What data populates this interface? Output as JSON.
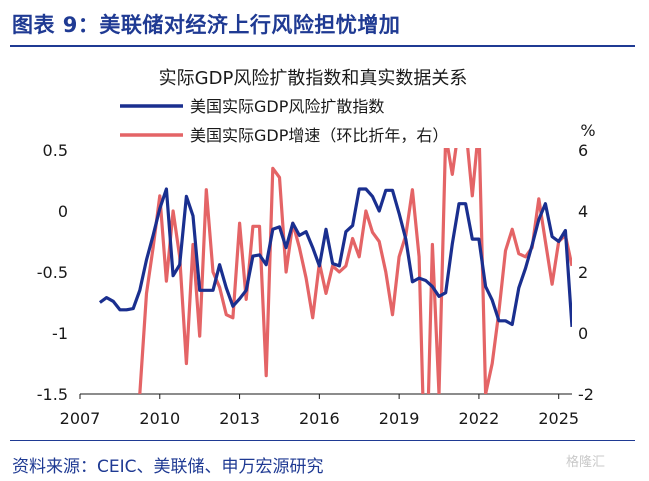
{
  "header": {
    "title": "图表 9：美联储对经济上行风险担忧增加"
  },
  "source": "资料来源：CEIC、美联储、申万宏源研究",
  "watermark": "格隆汇",
  "colors": {
    "brand": "#1f3a93",
    "series_risk": "#1a2f8f",
    "series_gdp": "#e46466"
  },
  "chart_data": {
    "type": "line",
    "title": "实际GDP风险扩散指数和真实数据关系",
    "left_axis": {
      "ticks": [
        "0.5",
        "0",
        "-0.5",
        "-1",
        "-1.5"
      ],
      "ylim": [
        -1.5,
        0.5
      ]
    },
    "right_axis": {
      "unit": "%",
      "ticks": [
        "6",
        "4",
        "2",
        "0",
        "-2"
      ],
      "ylim": [
        -2,
        6
      ]
    },
    "x_ticks": [
      "2007",
      "2010",
      "2013",
      "2016",
      "2019",
      "2022",
      "2025"
    ],
    "xlim": [
      2007,
      2025.5
    ],
    "legend": {
      "placement": "top-center"
    },
    "grid": false,
    "series": [
      {
        "name": "美国实际GDP风险扩散指数",
        "axis": "left",
        "points": [
          [
            2007.75,
            -0.75
          ],
          [
            2008.0,
            -0.71
          ],
          [
            2008.25,
            -0.74
          ],
          [
            2008.5,
            -0.81
          ],
          [
            2008.75,
            -0.81
          ],
          [
            2009.0,
            -0.8
          ],
          [
            2009.25,
            -0.65
          ],
          [
            2009.5,
            -0.4
          ],
          [
            2009.75,
            -0.2
          ],
          [
            2010.0,
            0.02
          ],
          [
            2010.25,
            0.18
          ],
          [
            2010.5,
            -0.53
          ],
          [
            2010.75,
            -0.44
          ],
          [
            2011.0,
            0.12
          ],
          [
            2011.25,
            -0.04
          ],
          [
            2011.5,
            -0.65
          ],
          [
            2011.75,
            -0.65
          ],
          [
            2012.0,
            -0.65
          ],
          [
            2012.25,
            -0.44
          ],
          [
            2012.5,
            -0.63
          ],
          [
            2012.75,
            -0.78
          ],
          [
            2013.0,
            -0.72
          ],
          [
            2013.25,
            -0.65
          ],
          [
            2013.5,
            -0.37
          ],
          [
            2013.75,
            -0.36
          ],
          [
            2014.0,
            -0.44
          ],
          [
            2014.25,
            -0.15
          ],
          [
            2014.5,
            -0.13
          ],
          [
            2014.75,
            -0.3
          ],
          [
            2015.0,
            -0.1
          ],
          [
            2015.25,
            -0.2
          ],
          [
            2015.5,
            -0.17
          ],
          [
            2015.75,
            -0.3
          ],
          [
            2016.0,
            -0.45
          ],
          [
            2016.25,
            -0.15
          ],
          [
            2016.5,
            -0.43
          ],
          [
            2016.75,
            -0.45
          ],
          [
            2017.0,
            -0.17
          ],
          [
            2017.25,
            -0.12
          ],
          [
            2017.5,
            0.18
          ],
          [
            2017.75,
            0.18
          ],
          [
            2018.0,
            0.12
          ],
          [
            2018.25,
            0.0
          ],
          [
            2018.5,
            0.17
          ],
          [
            2018.75,
            0.17
          ],
          [
            2019.0,
            -0.02
          ],
          [
            2019.25,
            -0.23
          ],
          [
            2019.5,
            -0.58
          ],
          [
            2019.75,
            -0.55
          ],
          [
            2020.0,
            -0.57
          ],
          [
            2020.25,
            -0.62
          ],
          [
            2020.5,
            -0.7
          ],
          [
            2020.75,
            -0.67
          ],
          [
            2021.0,
            -0.27
          ],
          [
            2021.25,
            0.06
          ],
          [
            2021.5,
            0.06
          ],
          [
            2021.75,
            -0.23
          ],
          [
            2022.0,
            -0.23
          ],
          [
            2022.25,
            -0.62
          ],
          [
            2022.5,
            -0.73
          ],
          [
            2022.75,
            -0.9
          ],
          [
            2023.0,
            -0.9
          ],
          [
            2023.25,
            -0.93
          ],
          [
            2023.5,
            -0.63
          ],
          [
            2023.75,
            -0.47
          ],
          [
            2024.0,
            -0.28
          ],
          [
            2024.25,
            -0.07
          ],
          [
            2024.5,
            0.06
          ],
          [
            2024.75,
            -0.21
          ],
          [
            2025.0,
            -0.25
          ],
          [
            2025.25,
            -0.16
          ],
          [
            2025.5,
            -0.95
          ]
        ]
      },
      {
        "name": "美国实际GDP增速（环比折年，右）",
        "axis": "right",
        "points": [
          [
            2009.25,
            -2.0
          ],
          [
            2009.5,
            1.3
          ],
          [
            2009.75,
            2.8
          ],
          [
            2010.0,
            4.5
          ],
          [
            2010.25,
            1.7
          ],
          [
            2010.5,
            4.0
          ],
          [
            2010.75,
            2.5
          ],
          [
            2011.0,
            -1.0
          ],
          [
            2011.25,
            2.9
          ],
          [
            2011.5,
            -0.1
          ],
          [
            2011.75,
            4.7
          ],
          [
            2012.0,
            2.0
          ],
          [
            2012.25,
            1.5
          ],
          [
            2012.5,
            0.6
          ],
          [
            2012.75,
            0.5
          ],
          [
            2013.0,
            3.6
          ],
          [
            2013.25,
            1.1
          ],
          [
            2013.5,
            3.5
          ],
          [
            2013.75,
            3.5
          ],
          [
            2014.0,
            -1.4
          ],
          [
            2014.25,
            5.4
          ],
          [
            2014.5,
            5.1
          ],
          [
            2014.75,
            2.0
          ],
          [
            2015.0,
            3.6
          ],
          [
            2015.25,
            2.8
          ],
          [
            2015.5,
            1.8
          ],
          [
            2015.75,
            0.5
          ],
          [
            2016.0,
            2.3
          ],
          [
            2016.25,
            1.3
          ],
          [
            2016.5,
            2.2
          ],
          [
            2016.75,
            2.0
          ],
          [
            2017.0,
            2.2
          ],
          [
            2017.25,
            3.1
          ],
          [
            2017.5,
            2.5
          ],
          [
            2017.75,
            4.0
          ],
          [
            2018.0,
            3.3
          ],
          [
            2018.25,
            3.0
          ],
          [
            2018.5,
            2.0
          ],
          [
            2018.75,
            0.6
          ],
          [
            2019.0,
            2.5
          ],
          [
            2019.25,
            3.2
          ],
          [
            2019.5,
            4.7
          ],
          [
            2019.75,
            2.5
          ],
          [
            2020.0,
            -5.5
          ],
          [
            2020.25,
            2.9
          ],
          [
            2020.5,
            -2.0
          ],
          [
            2020.75,
            6.5
          ],
          [
            2021.0,
            5.2
          ],
          [
            2021.25,
            6.8
          ],
          [
            2021.5,
            6.8
          ],
          [
            2021.75,
            4.5
          ],
          [
            2022.0,
            6.8
          ],
          [
            2022.25,
            -2.0
          ],
          [
            2022.5,
            -1.0
          ],
          [
            2022.75,
            0.7
          ],
          [
            2023.0,
            2.7
          ],
          [
            2023.25,
            3.4
          ],
          [
            2023.5,
            2.6
          ],
          [
            2023.75,
            2.5
          ],
          [
            2024.0,
            2.8
          ],
          [
            2024.25,
            4.4
          ],
          [
            2024.5,
            3.0
          ],
          [
            2024.75,
            1.6
          ],
          [
            2025.0,
            3.0
          ],
          [
            2025.25,
            3.2
          ],
          [
            2025.5,
            2.2
          ]
        ]
      }
    ]
  }
}
